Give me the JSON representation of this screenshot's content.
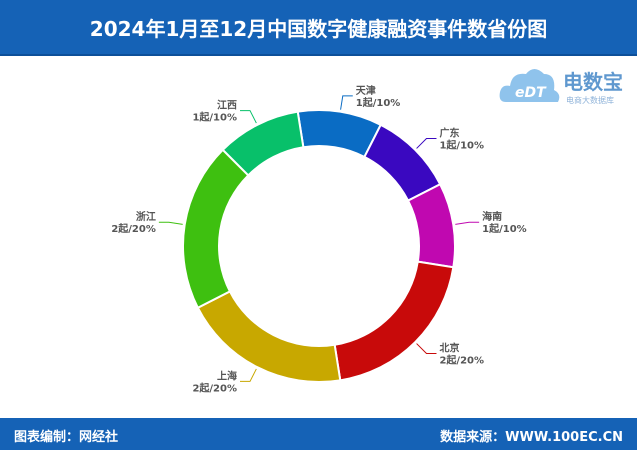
{
  "header": {
    "title": "2024年1月至12月中国数字健康融资事件数省份图"
  },
  "footer": {
    "left": "图表编制：网经社",
    "right": "数据来源：WWW.100EC.CN"
  },
  "logo": {
    "main": "电数宝",
    "sub": "电商大数据库",
    "edt": "eDT"
  },
  "chart_data": {
    "type": "pie",
    "donut": true,
    "slices": [
      {
        "name": "天津",
        "value": 1,
        "label": "1起/10%",
        "color": "#0a6cc4"
      },
      {
        "name": "广东",
        "value": 1,
        "label": "1起/10%",
        "color": "#3a08c0"
      },
      {
        "name": "海南",
        "value": 1,
        "label": "1起/10%",
        "color": "#c008b0"
      },
      {
        "name": "北京",
        "value": 2,
        "label": "2起/20%",
        "color": "#c80a0a"
      },
      {
        "name": "上海",
        "value": 2,
        "label": "2起/20%",
        "color": "#c8a800"
      },
      {
        "name": "浙江",
        "value": 2,
        "label": "2起/20%",
        "color": "#3ec010"
      },
      {
        "name": "江西",
        "value": 1,
        "label": "1起/10%",
        "color": "#08c06a"
      }
    ]
  }
}
